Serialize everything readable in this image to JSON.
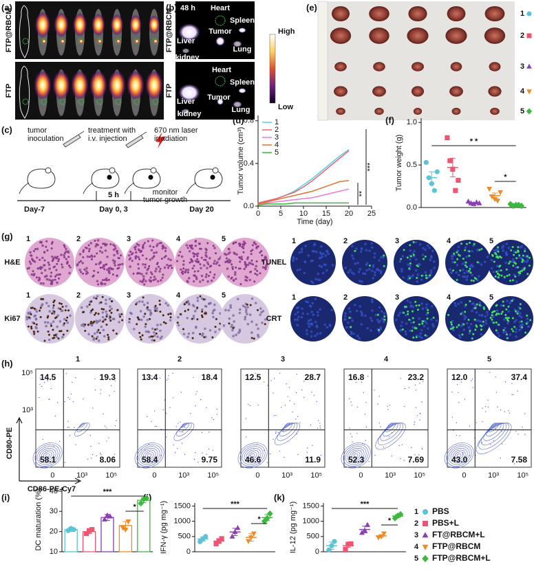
{
  "panel_labels": [
    "(a)",
    "(b)",
    "(c)",
    "(d)",
    "(e)",
    "(f)",
    "(g)",
    "(h)",
    "(i)",
    "(j)",
    "(k)"
  ],
  "a": {
    "rows": [
      "FTP@RBCM",
      "FTP"
    ]
  },
  "b": {
    "time": "48 h",
    "rows": [
      "FTP@RBCM",
      "FTP"
    ],
    "organs_top": [
      "Heart",
      "Spleen",
      "Liver",
      "Tumor",
      "kidney",
      "Lung"
    ],
    "organs_bottom": [
      "Heart",
      "Spleen",
      "Liver",
      "Tumor",
      "Lung",
      "kidney"
    ],
    "scale_high": "High",
    "scale_low": "Low"
  },
  "c": {
    "steps": [
      [
        "tumor",
        "inoculation"
      ],
      [
        "treatment with",
        "i.v. injection"
      ],
      [
        "670 nm laser",
        "irradiation"
      ],
      [
        "monitor",
        "tumor growth"
      ]
    ],
    "interval": "5 h",
    "days": [
      "Day-7",
      "Day 0, 3",
      "Day 20"
    ]
  },
  "e": {
    "groups": [
      "1",
      "2",
      "3",
      "4",
      "5"
    ]
  },
  "g": {
    "stains": [
      "H&E",
      "Ki67",
      "TUNEL",
      "CRT"
    ],
    "groups": [
      "1",
      "2",
      "3",
      "4",
      "5"
    ]
  },
  "h": {
    "titles": [
      "1",
      "2",
      "3",
      "4",
      "5"
    ],
    "quadrants": [
      [
        "14.5",
        "19.3",
        "58.1",
        "8.06"
      ],
      [
        "13.4",
        "18.4",
        "58.4",
        "9.75"
      ],
      [
        "12.5",
        "28.7",
        "46.6",
        "11.9"
      ],
      [
        "16.8",
        "23.2",
        "52.3",
        "7.69"
      ],
      [
        "12.0",
        "37.4",
        "43.0",
        "7.58"
      ]
    ],
    "y_label": "CD80-PE",
    "x_label": "CD86-PE-Cy7",
    "yticks": [
      "10⁵",
      "10³"
    ],
    "xticks": [
      "0",
      "10³",
      "10⁵"
    ]
  },
  "legend": {
    "items": [
      {
        "number": "1",
        "name": "PBS",
        "color": "#5bc3d6",
        "marker": "circle"
      },
      {
        "number": "2",
        "name": "PBS+L",
        "color": "#ee5570",
        "marker": "square"
      },
      {
        "number": "3",
        "name": "FT@RBCM+L",
        "color": "#8a3fb5",
        "marker": "triangle-up"
      },
      {
        "number": "4",
        "name": "FTP@RBCM",
        "color": "#f08a24",
        "marker": "triangle-down"
      },
      {
        "number": "5",
        "name": "FTP@RBCM+L",
        "color": "#3cb83c",
        "marker": "diamond"
      }
    ]
  },
  "chart_data": [
    {
      "type": "line",
      "x_label": "Time (day)",
      "y_label": "Tumor volume (cm³)",
      "x": [
        0,
        2,
        4,
        6,
        8,
        10,
        12,
        14,
        16,
        18,
        20
      ],
      "xlim": [
        0,
        25
      ],
      "xticks": [
        0,
        5,
        10,
        15,
        20,
        25
      ],
      "ylim": [
        0,
        0.85
      ],
      "yticks": [
        {
          "value": 0,
          "label": "0.0"
        },
        {
          "value": 0.4,
          "label": "0.4"
        },
        {
          "value": 0.8,
          "label": "0.8"
        }
      ],
      "legend": "upper left",
      "annotations": [
        "***",
        "**"
      ],
      "series": [
        {
          "name": "1",
          "color": "#4fd0e0",
          "values": [
            0.03,
            0.05,
            0.07,
            0.1,
            0.14,
            0.2,
            0.26,
            0.33,
            0.4,
            0.47,
            0.53
          ]
        },
        {
          "name": "2",
          "color": "#f06070",
          "values": [
            0.03,
            0.05,
            0.07,
            0.1,
            0.13,
            0.18,
            0.24,
            0.31,
            0.38,
            0.45,
            0.52
          ]
        },
        {
          "name": "3",
          "color": "#e878d8",
          "values": [
            0.02,
            0.03,
            0.04,
            0.05,
            0.06,
            0.07,
            0.08,
            0.1,
            0.12,
            0.14,
            0.16
          ]
        },
        {
          "name": "4",
          "color": "#e07030",
          "values": [
            0.02,
            0.04,
            0.06,
            0.08,
            0.1,
            0.12,
            0.14,
            0.17,
            0.2,
            0.23,
            0.24
          ]
        },
        {
          "name": "5",
          "color": "#30c030",
          "values": [
            0.01,
            0.02,
            0.02,
            0.02,
            0.03,
            0.03,
            0.03,
            0.03,
            0.03,
            0.03,
            0.03
          ]
        }
      ]
    },
    {
      "type": "strip",
      "y_label": "Tumor weight (g)",
      "ylim": [
        0,
        1.05
      ],
      "yticks": [
        {
          "value": 0,
          "label": "0.0"
        },
        {
          "value": 0.5,
          "label": "0.5"
        },
        {
          "value": 1,
          "label": "1.0"
        }
      ],
      "annotations": [
        "* *",
        "*"
      ],
      "series": [
        {
          "color": "#5bc3d6",
          "marker": "circle",
          "values": [
            0.53,
            0.35,
            0.28,
            0.2,
            0.42
          ],
          "mean": 0.35,
          "error": 0.07
        },
        {
          "color": "#ee5570",
          "marker": "square",
          "values": [
            0.82,
            0.55,
            0.45,
            0.2,
            0.32
          ],
          "mean": 0.47,
          "error": 0.11
        },
        {
          "color": "#8a3fb5",
          "marker": "triangle-up",
          "values": [
            0.07,
            0.05,
            0.04,
            0.06,
            0.05
          ],
          "mean": 0.05,
          "error": 0.01
        },
        {
          "color": "#f08a24",
          "marker": "triangle-down",
          "values": [
            0.22,
            0.13,
            0.1,
            0.08,
            0.18
          ],
          "mean": 0.14,
          "error": 0.03
        },
        {
          "color": "#3cb83c",
          "marker": "diamond",
          "values": [
            0.04,
            0.02,
            0.03,
            0.03,
            0.02
          ],
          "mean": 0.03,
          "error": 0.005
        }
      ]
    },
    {
      "type": "bar",
      "y_label": "DC maturation (%)",
      "ylim": [
        10,
        42
      ],
      "yticks": [
        10,
        20,
        30,
        40
      ],
      "annotations": [
        "***",
        "*"
      ],
      "series": [
        {
          "color": "#5bc3d6",
          "marker": "circle",
          "values": [
            20.5,
            21.5,
            21
          ],
          "mean": 21,
          "error": 1
        },
        {
          "color": "#ee5570",
          "marker": "square",
          "values": [
            19,
            20.5,
            21
          ],
          "mean": 20,
          "error": 1
        },
        {
          "color": "#8a3fb5",
          "marker": "triangle-up",
          "values": [
            26,
            28,
            27.5
          ],
          "mean": 27,
          "error": 1.5
        },
        {
          "color": "#f08a24",
          "marker": "triangle-down",
          "values": [
            22,
            21,
            25
          ],
          "mean": 23,
          "error": 2
        },
        {
          "color": "#3cb83c",
          "marker": "diamond",
          "values": [
            34,
            36,
            36.5
          ],
          "mean": 35.5,
          "error": 1.2
        }
      ]
    },
    {
      "type": "strip",
      "y_label": "IFN-γ (pg mg⁻¹)",
      "ylim": [
        0,
        1600
      ],
      "yticks": [
        0,
        500,
        1000,
        1500
      ],
      "annotations": [
        "***",
        "*"
      ],
      "series": [
        {
          "color": "#5bc3d6",
          "marker": "circle",
          "values": [
            330,
            420,
            500
          ],
          "mean": 420,
          "error": 70
        },
        {
          "color": "#ee5570",
          "marker": "square",
          "values": [
            260,
            350,
            430
          ],
          "mean": 350,
          "error": 80
        },
        {
          "color": "#8a3fb5",
          "marker": "triangle-up",
          "values": [
            500,
            650,
            780
          ],
          "mean": 650,
          "error": 120
        },
        {
          "color": "#f08a24",
          "marker": "triangle-down",
          "values": [
            350,
            470,
            600
          ],
          "mean": 470,
          "error": 120
        },
        {
          "color": "#3cb83c",
          "marker": "diamond",
          "values": [
            1000,
            1100,
            1250
          ],
          "mean": 1120,
          "error": 100
        }
      ]
    },
    {
      "type": "strip",
      "y_label": "IL-12 (pg mg⁻¹)",
      "ylim": [
        0,
        1600
      ],
      "yticks": [
        0,
        500,
        1000,
        1500
      ],
      "annotations": [
        "***",
        "*"
      ],
      "series": [
        {
          "color": "#5bc3d6",
          "marker": "circle",
          "values": [
            60,
            200,
            340
          ],
          "mean": 200,
          "error": 120
        },
        {
          "color": "#ee5570",
          "marker": "square",
          "values": [
            80,
            250,
            260
          ],
          "mean": 200,
          "error": 60
        },
        {
          "color": "#8a3fb5",
          "marker": "triangle-up",
          "values": [
            620,
            700,
            880
          ],
          "mean": 730,
          "error": 110
        },
        {
          "color": "#f08a24",
          "marker": "triangle-down",
          "values": [
            470,
            500,
            600
          ],
          "mean": 520,
          "error": 40
        },
        {
          "color": "#3cb83c",
          "marker": "diamond",
          "values": [
            1100,
            1180,
            1230
          ],
          "mean": 1170,
          "error": 50
        }
      ]
    }
  ]
}
